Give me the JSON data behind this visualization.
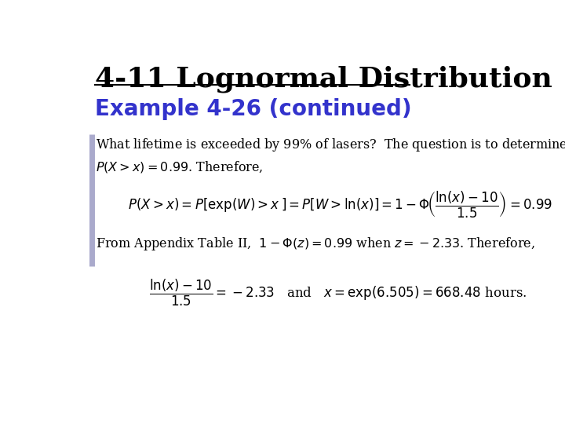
{
  "title": "4-11 Lognormal Distribution",
  "subtitle": "Example 4-26 (continued)",
  "title_color": "#000000",
  "subtitle_color": "#3333cc",
  "bg_color": "#ffffff",
  "accent_line_color": "#aaaacc",
  "title_fontsize": 26,
  "subtitle_fontsize": 20,
  "body_fontsize": 11.5,
  "math_fontsize": 12
}
